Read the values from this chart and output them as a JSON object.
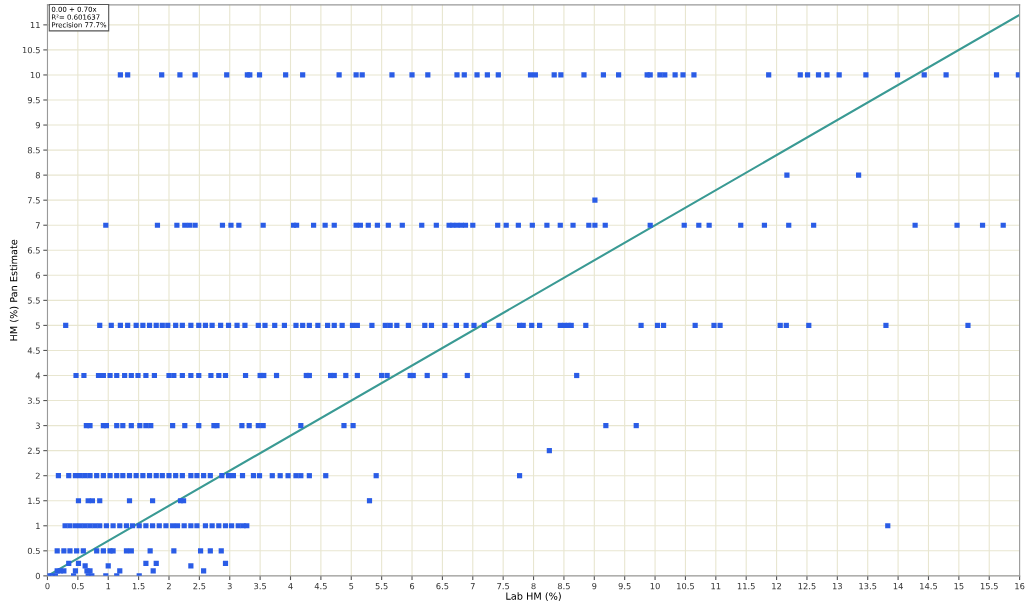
{
  "chart_data": {
    "type": "scatter",
    "xlabel": "Lab HM (%)",
    "ylabel": "HM (%) Pan Estimate",
    "annotations": [
      "0.00 + 0.70x",
      "R²= 0.601637",
      "Precision 77.7%"
    ],
    "xlim": [
      0,
      16
    ],
    "ylim": [
      0,
      11.4
    ],
    "xticks": [
      0,
      0.5,
      1,
      1.5,
      2,
      2.5,
      3,
      3.5,
      4,
      4.5,
      5,
      5.5,
      6,
      6.5,
      7,
      7.5,
      8,
      8.5,
      9,
      9.5,
      10,
      10.5,
      11,
      11.5,
      12,
      12.5,
      13,
      13.5,
      14,
      14.5,
      15,
      15.5,
      16
    ],
    "yticks": [
      0,
      0.5,
      1,
      1.5,
      2,
      2.5,
      3,
      3.5,
      4,
      4.5,
      5,
      5.5,
      6,
      6.5,
      7,
      7.5,
      8,
      8.5,
      9,
      9.5,
      10,
      10.5,
      11
    ],
    "grid": true,
    "marker": "square",
    "series": [
      {
        "color": "#2a5ce6",
        "x": [
          1.2,
          1.32,
          1.88,
          2.18,
          2.43,
          2.95,
          3.29,
          3.33,
          3.49,
          3.92,
          4.2,
          4.8,
          5.08,
          5.18,
          5.67,
          6.0,
          6.26,
          6.74,
          6.86,
          7.07,
          7.24,
          7.42,
          7.95,
          8.03,
          8.34,
          8.45,
          8.83,
          9.15,
          9.4,
          9.87,
          9.92,
          10.08,
          10.16,
          10.33,
          10.46,
          10.64,
          11.87,
          12.39,
          12.51,
          12.69,
          12.83,
          13.03,
          13.47,
          13.99,
          14.43,
          14.79,
          15.62,
          15.98,
          0.96,
          1.81,
          2.13,
          2.26,
          2.34,
          2.43,
          2.88,
          3.02,
          3.15,
          3.55,
          4.05,
          4.1,
          4.38,
          4.57,
          4.72,
          5.08,
          5.15,
          5.28,
          5.43,
          5.61,
          5.84,
          6.16,
          6.4,
          6.61,
          6.67,
          6.74,
          6.81,
          6.88,
          7.0,
          7.41,
          7.55,
          7.75,
          7.98,
          8.22,
          8.44,
          8.65,
          8.91,
          9.01,
          9.18,
          9.92,
          10.48,
          10.72,
          10.89,
          11.41,
          11.8,
          12.2,
          12.61,
          14.28,
          14.97,
          15.39,
          15.73,
          9.01,
          12.17,
          13.35,
          0.3,
          0.86,
          1.05,
          1.2,
          1.32,
          1.46,
          1.57,
          1.68,
          1.79,
          1.89,
          1.98,
          2.11,
          2.22,
          2.36,
          2.49,
          2.6,
          2.71,
          2.85,
          2.98,
          3.12,
          3.25,
          3.47,
          3.58,
          3.74,
          3.9,
          4.09,
          4.2,
          4.31,
          4.45,
          4.61,
          4.72,
          4.85,
          5.02,
          5.1,
          5.34,
          5.56,
          5.64,
          5.75,
          5.94,
          6.21,
          6.32,
          6.54,
          6.73,
          6.89,
          7.02,
          7.19,
          7.43,
          7.77,
          7.83,
          7.97,
          8.1,
          8.44,
          8.51,
          8.57,
          8.62,
          8.86,
          9.77,
          10.04,
          10.14,
          10.66,
          10.97,
          11.07,
          12.06,
          12.16,
          12.53,
          13.8,
          15.15,
          0.47,
          0.6,
          0.84,
          0.92,
          1.03,
          1.14,
          1.27,
          1.38,
          1.49,
          1.62,
          1.76,
          2.0,
          2.08,
          2.22,
          2.36,
          2.49,
          2.69,
          2.82,
          2.93,
          3.26,
          3.5,
          3.56,
          3.77,
          4.26,
          4.31,
          4.66,
          4.72,
          4.91,
          5.1,
          5.5,
          5.59,
          5.97,
          6.02,
          6.25,
          6.54,
          6.91,
          8.71,
          0.64,
          0.7,
          0.92,
          0.97,
          1.14,
          1.24,
          1.38,
          1.52,
          1.62,
          1.7,
          2.06,
          2.26,
          2.49,
          2.74,
          2.79,
          3.2,
          3.32,
          3.47,
          3.55,
          4.17,
          4.88,
          5.03,
          9.19,
          9.69,
          8.26,
          0.18,
          0.35,
          0.46,
          0.54,
          0.62,
          0.7,
          0.81,
          0.92,
          1.03,
          1.14,
          1.24,
          1.35,
          1.46,
          1.57,
          1.68,
          1.79,
          1.89,
          2.0,
          2.11,
          2.22,
          2.36,
          2.46,
          2.57,
          2.68,
          2.87,
          2.98,
          3.06,
          3.21,
          3.39,
          3.49,
          3.7,
          3.83,
          3.96,
          4.09,
          4.17,
          4.31,
          4.58,
          5.41,
          7.77,
          0.51,
          0.67,
          0.74,
          0.86,
          1.35,
          1.73,
          2.19,
          2.24,
          5.3,
          0.29,
          0.37,
          0.46,
          0.54,
          0.62,
          0.7,
          0.78,
          0.86,
          0.97,
          1.08,
          1.19,
          1.3,
          1.4,
          1.51,
          1.62,
          1.73,
          1.84,
          1.95,
          2.06,
          2.14,
          2.25,
          2.36,
          2.46,
          2.6,
          2.71,
          2.82,
          2.93,
          3.03,
          3.14,
          3.22,
          3.28,
          13.83,
          0.16,
          0.27,
          0.37,
          0.48,
          0.59,
          0.81,
          0.92,
          1.03,
          1.08,
          1.3,
          1.38,
          1.69,
          2.08,
          2.52,
          2.68,
          2.86,
          0.35,
          0.51,
          1.62,
          1.79,
          2.93,
          0.62,
          1.0,
          2.36,
          0.16,
          0.21,
          0.27,
          0.46,
          0.65,
          0.7,
          1.19,
          1.74,
          2.57,
          0.02,
          0.08,
          0.13,
          0.43,
          0.67,
          0.73,
          0.96,
          1.14,
          1.51
        ],
        "values": [
          10,
          10,
          10,
          10,
          10,
          10,
          10,
          10,
          10,
          10,
          10,
          10,
          10,
          10,
          10,
          10,
          10,
          10,
          10,
          10,
          10,
          10,
          10,
          10,
          10,
          10,
          10,
          10,
          10,
          10,
          10,
          10,
          10,
          10,
          10,
          10,
          10,
          10,
          10,
          10,
          10,
          10,
          10,
          10,
          10,
          10,
          10,
          10,
          7,
          7,
          7,
          7,
          7,
          7,
          7,
          7,
          7,
          7,
          7,
          7,
          7,
          7,
          7,
          7,
          7,
          7,
          7,
          7,
          7,
          7,
          7,
          7,
          7,
          7,
          7,
          7,
          7,
          7,
          7,
          7,
          7,
          7,
          7,
          7,
          7,
          7,
          7,
          7,
          7,
          7,
          7,
          7,
          7,
          7,
          7,
          7,
          7,
          7,
          7,
          7.5,
          8,
          8,
          5,
          5,
          5,
          5,
          5,
          5,
          5,
          5,
          5,
          5,
          5,
          5,
          5,
          5,
          5,
          5,
          5,
          5,
          5,
          5,
          5,
          5,
          5,
          5,
          5,
          5,
          5,
          5,
          5,
          5,
          5,
          5,
          5,
          5,
          5,
          5,
          5,
          5,
          5,
          5,
          5,
          5,
          5,
          5,
          5,
          5,
          5,
          5,
          5,
          5,
          5,
          5,
          5,
          5,
          5,
          5,
          5,
          5,
          5,
          5,
          5,
          5,
          5,
          5,
          5,
          5,
          5,
          4,
          4,
          4,
          4,
          4,
          4,
          4,
          4,
          4,
          4,
          4,
          4,
          4,
          4,
          4,
          4,
          4,
          4,
          4,
          4,
          4,
          4,
          4,
          4,
          4,
          4,
          4,
          4,
          4,
          4,
          4,
          4,
          4,
          4,
          4,
          4,
          4,
          3,
          3,
          3,
          3,
          3,
          3,
          3,
          3,
          3,
          3,
          3,
          3,
          3,
          3,
          3,
          3,
          3,
          3,
          3,
          3,
          3,
          3,
          3,
          3,
          2.5,
          2,
          2,
          2,
          2,
          2,
          2,
          2,
          2,
          2,
          2,
          2,
          2,
          2,
          2,
          2,
          2,
          2,
          2,
          2,
          2,
          2,
          2,
          2,
          2,
          2,
          2,
          2,
          2,
          2,
          2,
          2,
          2,
          2,
          2,
          2,
          2,
          2,
          2,
          2,
          1.5,
          1.5,
          1.5,
          1.5,
          1.5,
          1.5,
          1.5,
          1.5,
          1.5,
          1,
          1,
          1,
          1,
          1,
          1,
          1,
          1,
          1,
          1,
          1,
          1,
          1,
          1,
          1,
          1,
          1,
          1,
          1,
          1,
          1,
          1,
          1,
          1,
          1,
          1,
          1,
          1,
          1,
          1,
          1,
          1,
          0.5,
          0.5,
          0.5,
          0.5,
          0.5,
          0.5,
          0.5,
          0.5,
          0.5,
          0.5,
          0.5,
          0.5,
          0.5,
          0.5,
          0.5,
          0.5,
          0.25,
          0.25,
          0.25,
          0.25,
          0.25,
          0.2,
          0.2,
          0.2,
          0.1,
          0.1,
          0.1,
          0.1,
          0.1,
          0.1,
          0.1,
          0.1,
          0.1,
          0,
          0,
          0,
          0,
          0,
          0,
          0,
          0,
          0
        ]
      },
      {
        "type": "line",
        "color": "#3a9a94",
        "marker": "none",
        "x": [
          0,
          16
        ],
        "values": [
          0,
          11.2
        ]
      }
    ]
  }
}
